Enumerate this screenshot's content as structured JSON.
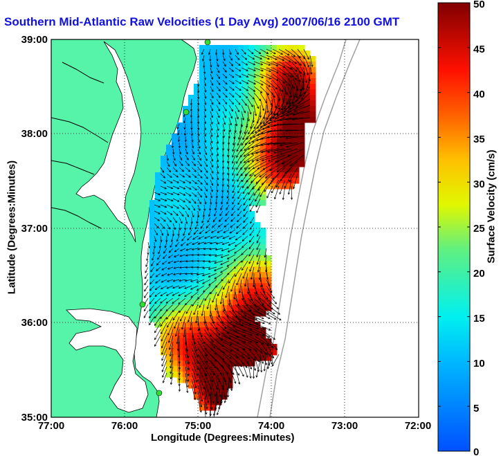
{
  "title": "Southern Mid-Atlantic Raw Velocities (1 Day Avg) 2007/06/16 2100 GMT",
  "xlabel": "Longitude (Degrees:Minutes)",
  "ylabel": "Latitude (Degrees:Minutes)",
  "colorbar": {
    "label": "Surface Velocity (cm/s)",
    "ticks": [
      "0",
      "5",
      "10",
      "15",
      "20",
      "25",
      "30",
      "35",
      "40",
      "45",
      "50"
    ],
    "range": [
      0,
      50
    ]
  },
  "axes": {
    "x_ticks": [
      "77:00",
      "76:00",
      "75:00",
      "74:00",
      "73:00",
      "72:00"
    ],
    "y_ticks": [
      "39:00",
      "38:00",
      "37:00",
      "36:00",
      "35:00"
    ],
    "xlim": [
      -77,
      -72
    ],
    "ylim": [
      35,
      39
    ]
  },
  "colors": {
    "land": "#55f4a8",
    "title": "#1010e0",
    "grid": "#000000",
    "bathymetry": "#a0a0a0",
    "station": "#33dd33"
  },
  "stations": [
    "station-1",
    "station-2",
    "station-3",
    "station-4"
  ]
}
